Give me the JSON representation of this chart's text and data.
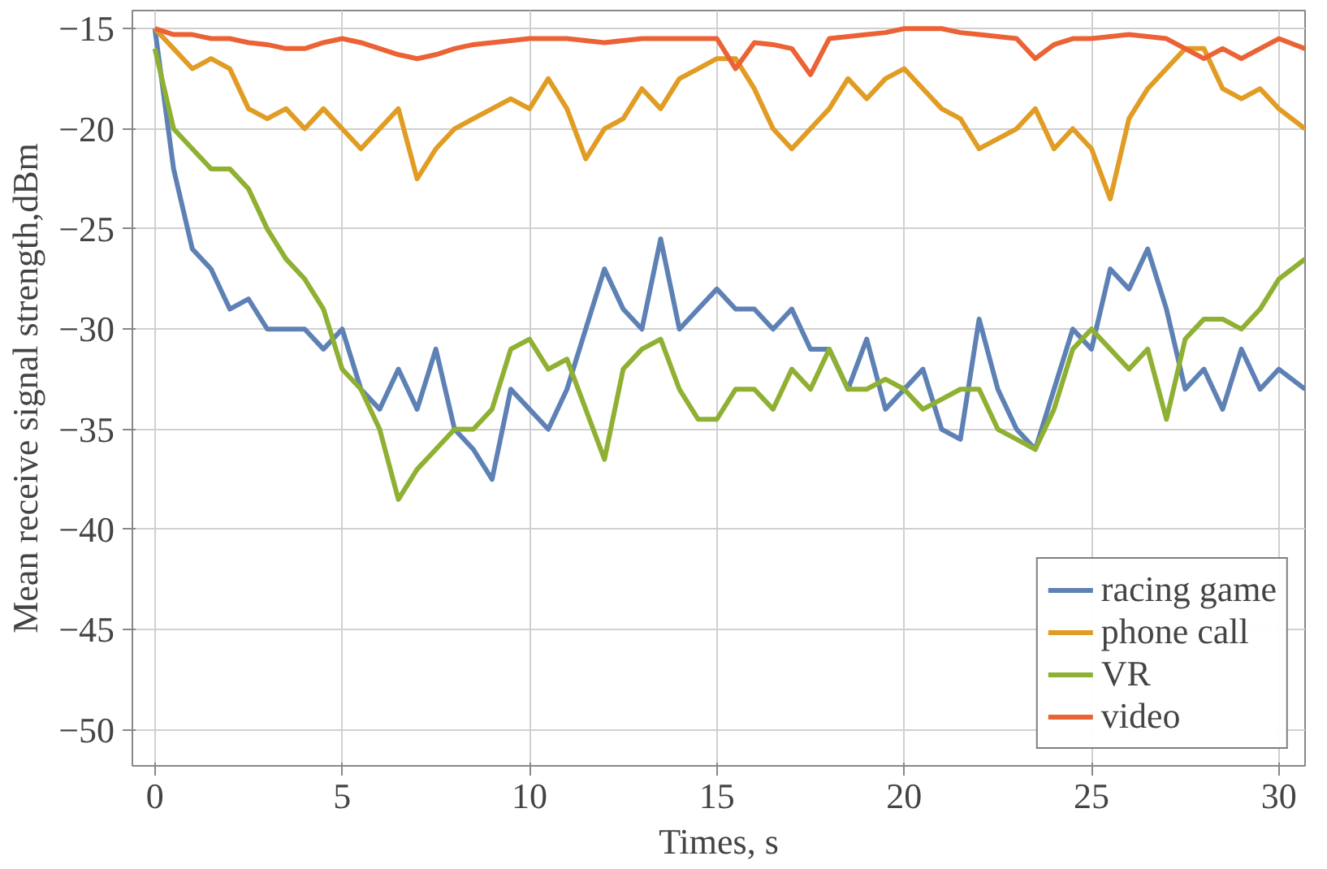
{
  "chart_data": {
    "type": "line",
    "xlabel": "Times, s",
    "ylabel": "Mean receive signal strength,dBm",
    "x": [
      0,
      0.5,
      1,
      1.5,
      2,
      2.5,
      3,
      3.5,
      4,
      4.5,
      5,
      5.5,
      6,
      6.5,
      7,
      7.5,
      8,
      8.5,
      9,
      9.5,
      10,
      10.5,
      11,
      11.5,
      12,
      12.5,
      13,
      13.5,
      14,
      14.5,
      15,
      15.5,
      16,
      16.5,
      17,
      17.5,
      18,
      18.5,
      19,
      19.5,
      20,
      20.5,
      21,
      21.5,
      22,
      22.5,
      23,
      23.5,
      24,
      24.5,
      25,
      25.5,
      26,
      26.5,
      27,
      27.5,
      28,
      28.5,
      29,
      29.5,
      30,
      30.7
    ],
    "series": [
      {
        "name": "racing game",
        "color": "#5e81b5",
        "values": [
          -15,
          -22,
          -26,
          -27,
          -29,
          -28.5,
          -30,
          -30,
          -30,
          -31,
          -30,
          -33,
          -34,
          -32,
          -34,
          -31,
          -35,
          -36,
          -37.5,
          -33,
          -34,
          -35,
          -33,
          -30,
          -27,
          -29,
          -30,
          -25.5,
          -30,
          -29,
          -28,
          -29,
          -29,
          -30,
          -29,
          -31,
          -31,
          -33,
          -30.5,
          -34,
          -33,
          -32,
          -35,
          -35.5,
          -29.5,
          -33,
          -35,
          -36,
          -33,
          -30,
          -31,
          -27,
          -28,
          -26,
          -29,
          -33,
          -32,
          -34,
          -31,
          -33,
          -32,
          -33
        ]
      },
      {
        "name": "phone call",
        "color": "#e19c24",
        "values": [
          -15,
          -16,
          -17,
          -16.5,
          -17,
          -19,
          -19.5,
          -19,
          -20,
          -19,
          -20,
          -21,
          -20,
          -19,
          -22.5,
          -21,
          -20,
          -19.5,
          -19,
          -18.5,
          -19,
          -17.5,
          -19,
          -21.5,
          -20,
          -19.5,
          -18,
          -19,
          -17.5,
          -17,
          -16.5,
          -16.5,
          -18,
          -20,
          -21,
          -20,
          -19,
          -17.5,
          -18.5,
          -17.5,
          -17,
          -18,
          -19,
          -19.5,
          -21,
          -20.5,
          -20,
          -19,
          -21,
          -20,
          -21,
          -23.5,
          -19.5,
          -18,
          -17,
          -16,
          -16,
          -18,
          -18.5,
          -18,
          -19,
          -20
        ]
      },
      {
        "name": "VR",
        "color": "#8fb032",
        "values": [
          -16,
          -20,
          -21,
          -22,
          -22,
          -23,
          -25,
          -26.5,
          -27.5,
          -29,
          -32,
          -33,
          -35,
          -38.5,
          -37,
          -36,
          -35,
          -35,
          -34,
          -31,
          -30.5,
          -32,
          -31.5,
          -34,
          -36.5,
          -32,
          -31,
          -30.5,
          -33,
          -34.5,
          -34.5,
          -33,
          -33,
          -34,
          -32,
          -33,
          -31,
          -33,
          -33,
          -32.5,
          -33,
          -34,
          -33.5,
          -33,
          -33,
          -35,
          -35.5,
          -36,
          -34,
          -31,
          -30,
          -31,
          -32,
          -31,
          -34.5,
          -30.5,
          -29.5,
          -29.5,
          -30,
          -29,
          -27.5,
          -26.5
        ]
      },
      {
        "name": "video",
        "color": "#eb6235",
        "values": [
          -15,
          -15.3,
          -15.3,
          -15.5,
          -15.5,
          -15.7,
          -15.8,
          -16,
          -16,
          -15.7,
          -15.5,
          -15.7,
          -16,
          -16.3,
          -16.5,
          -16.3,
          -16,
          -15.8,
          -15.7,
          -15.6,
          -15.5,
          -15.5,
          -15.5,
          -15.6,
          -15.7,
          -15.6,
          -15.5,
          -15.5,
          -15.5,
          -15.5,
          -15.5,
          -17,
          -15.7,
          -15.8,
          -16,
          -17.3,
          -15.5,
          -15.4,
          -15.3,
          -15.2,
          -15,
          -15,
          -15,
          -15.2,
          -15.3,
          -15.4,
          -15.5,
          -16.5,
          -15.8,
          -15.5,
          -15.5,
          -15.4,
          -15.3,
          -15.4,
          -15.5,
          -16,
          -16.5,
          -16,
          -16.5,
          -16,
          -15.5,
          -16
        ]
      }
    ],
    "xlim": [
      -0.6,
      30.7
    ],
    "ylim": [
      -51.8,
      -14.1
    ],
    "xticks": [
      0,
      5,
      10,
      15,
      20,
      25,
      30
    ],
    "yticks": [
      -15,
      -20,
      -25,
      -30,
      -35,
      -40,
      -45,
      -50
    ],
    "grid": true,
    "legend": "bottom right",
    "line_style": "solid",
    "marker": "none"
  }
}
